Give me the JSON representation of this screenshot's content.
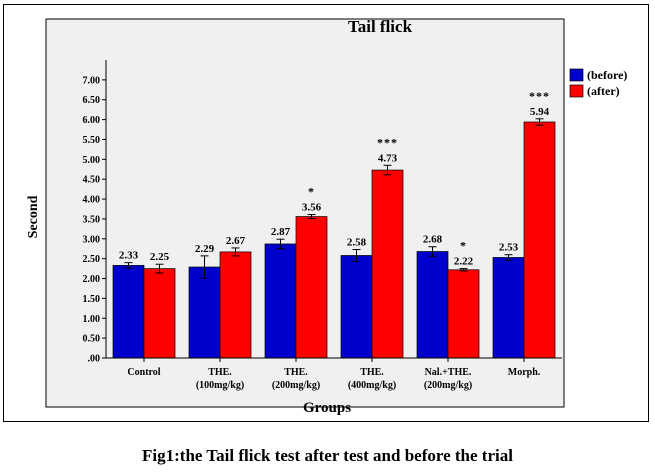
{
  "chart_data": {
    "type": "bar",
    "title": "Tail flick",
    "xlabel": "Groups",
    "ylabel": "Second",
    "ylim": [
      0,
      7.5
    ],
    "yticks": [
      ".00",
      "0.50",
      "1.00",
      "1.50",
      "2.00",
      "2.50",
      "3.00",
      "3.50",
      "4.00",
      "4.50",
      "5.00",
      "5.50",
      "6.00",
      "6.50",
      "7.00"
    ],
    "categories": [
      [
        "Control"
      ],
      [
        "THE.",
        "(100mg/kg)"
      ],
      [
        "THE.",
        "(200mg/kg)"
      ],
      [
        "THE.",
        "(400mg/kg)"
      ],
      [
        "Nal.+THE.",
        "(200mg/kg)"
      ],
      [
        "Morph."
      ]
    ],
    "legend_position": "top-right",
    "series": [
      {
        "name": "(before)",
        "color": "#0000cc",
        "values": [
          2.33,
          2.29,
          2.87,
          2.58,
          2.68,
          2.53
        ],
        "labels": [
          "2.33",
          "2.29",
          "2.87",
          "2.58",
          "2.68",
          "2.53"
        ],
        "errors": [
          0.07,
          0.28,
          0.12,
          0.15,
          0.12,
          0.07
        ],
        "significance": [
          "",
          "",
          "",
          "",
          "",
          ""
        ]
      },
      {
        "name": "(after)",
        "color": "#ff0000",
        "values": [
          2.25,
          2.67,
          3.56,
          4.73,
          2.22,
          5.94
        ],
        "labels": [
          "2.25",
          "2.67",
          "3.56",
          "4.73",
          "2.22",
          "5.94"
        ],
        "errors": [
          0.11,
          0.1,
          0.05,
          0.12,
          0.03,
          0.08
        ],
        "significance": [
          "",
          "",
          "*",
          "***",
          "*",
          "***"
        ]
      }
    ]
  },
  "caption": "Fig1:the Tail flick test after test and before the trial"
}
